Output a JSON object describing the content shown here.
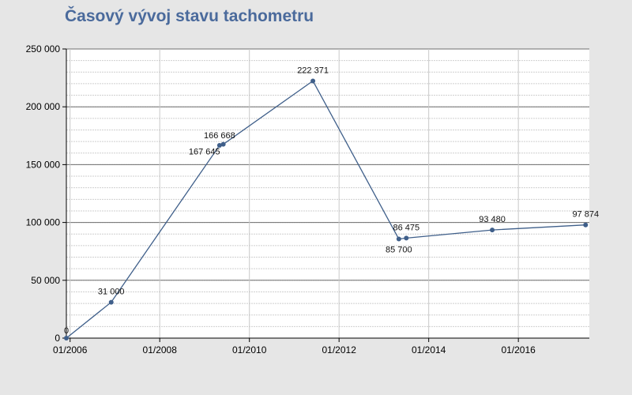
{
  "chart_data": {
    "type": "line",
    "title": "Časový vývoj stavu tachometru",
    "xlabel": "",
    "ylabel": "",
    "x_ticks": [
      "01/2006",
      "01/2008",
      "01/2010",
      "01/2012",
      "01/2014",
      "01/2016"
    ],
    "y_ticks": [
      "0",
      "50 000",
      "100 000",
      "150 000",
      "200 000",
      "250 000"
    ],
    "ylim": [
      0,
      250000
    ],
    "xlim": [
      "2005-12",
      "2017-08"
    ],
    "grid": true,
    "line_color": "#3f5f8a",
    "series": [
      {
        "points": [
          {
            "x": "2005-12",
            "y": 0,
            "label": "0"
          },
          {
            "x": "2006-12",
            "y": 31000,
            "label": "31 000"
          },
          {
            "x": "2009-05",
            "y": 166668,
            "label": "166 668"
          },
          {
            "x": "2009-06",
            "y": 167645,
            "label": "167 645"
          },
          {
            "x": "2011-06",
            "y": 222371,
            "label": "222 371"
          },
          {
            "x": "2013-05",
            "y": 85700,
            "label": "85 700"
          },
          {
            "x": "2013-07",
            "y": 86475,
            "label": "86 475"
          },
          {
            "x": "2015-06",
            "y": 93480,
            "label": "93 480"
          },
          {
            "x": "2017-07",
            "y": 97874,
            "label": "97 874"
          }
        ]
      }
    ]
  }
}
